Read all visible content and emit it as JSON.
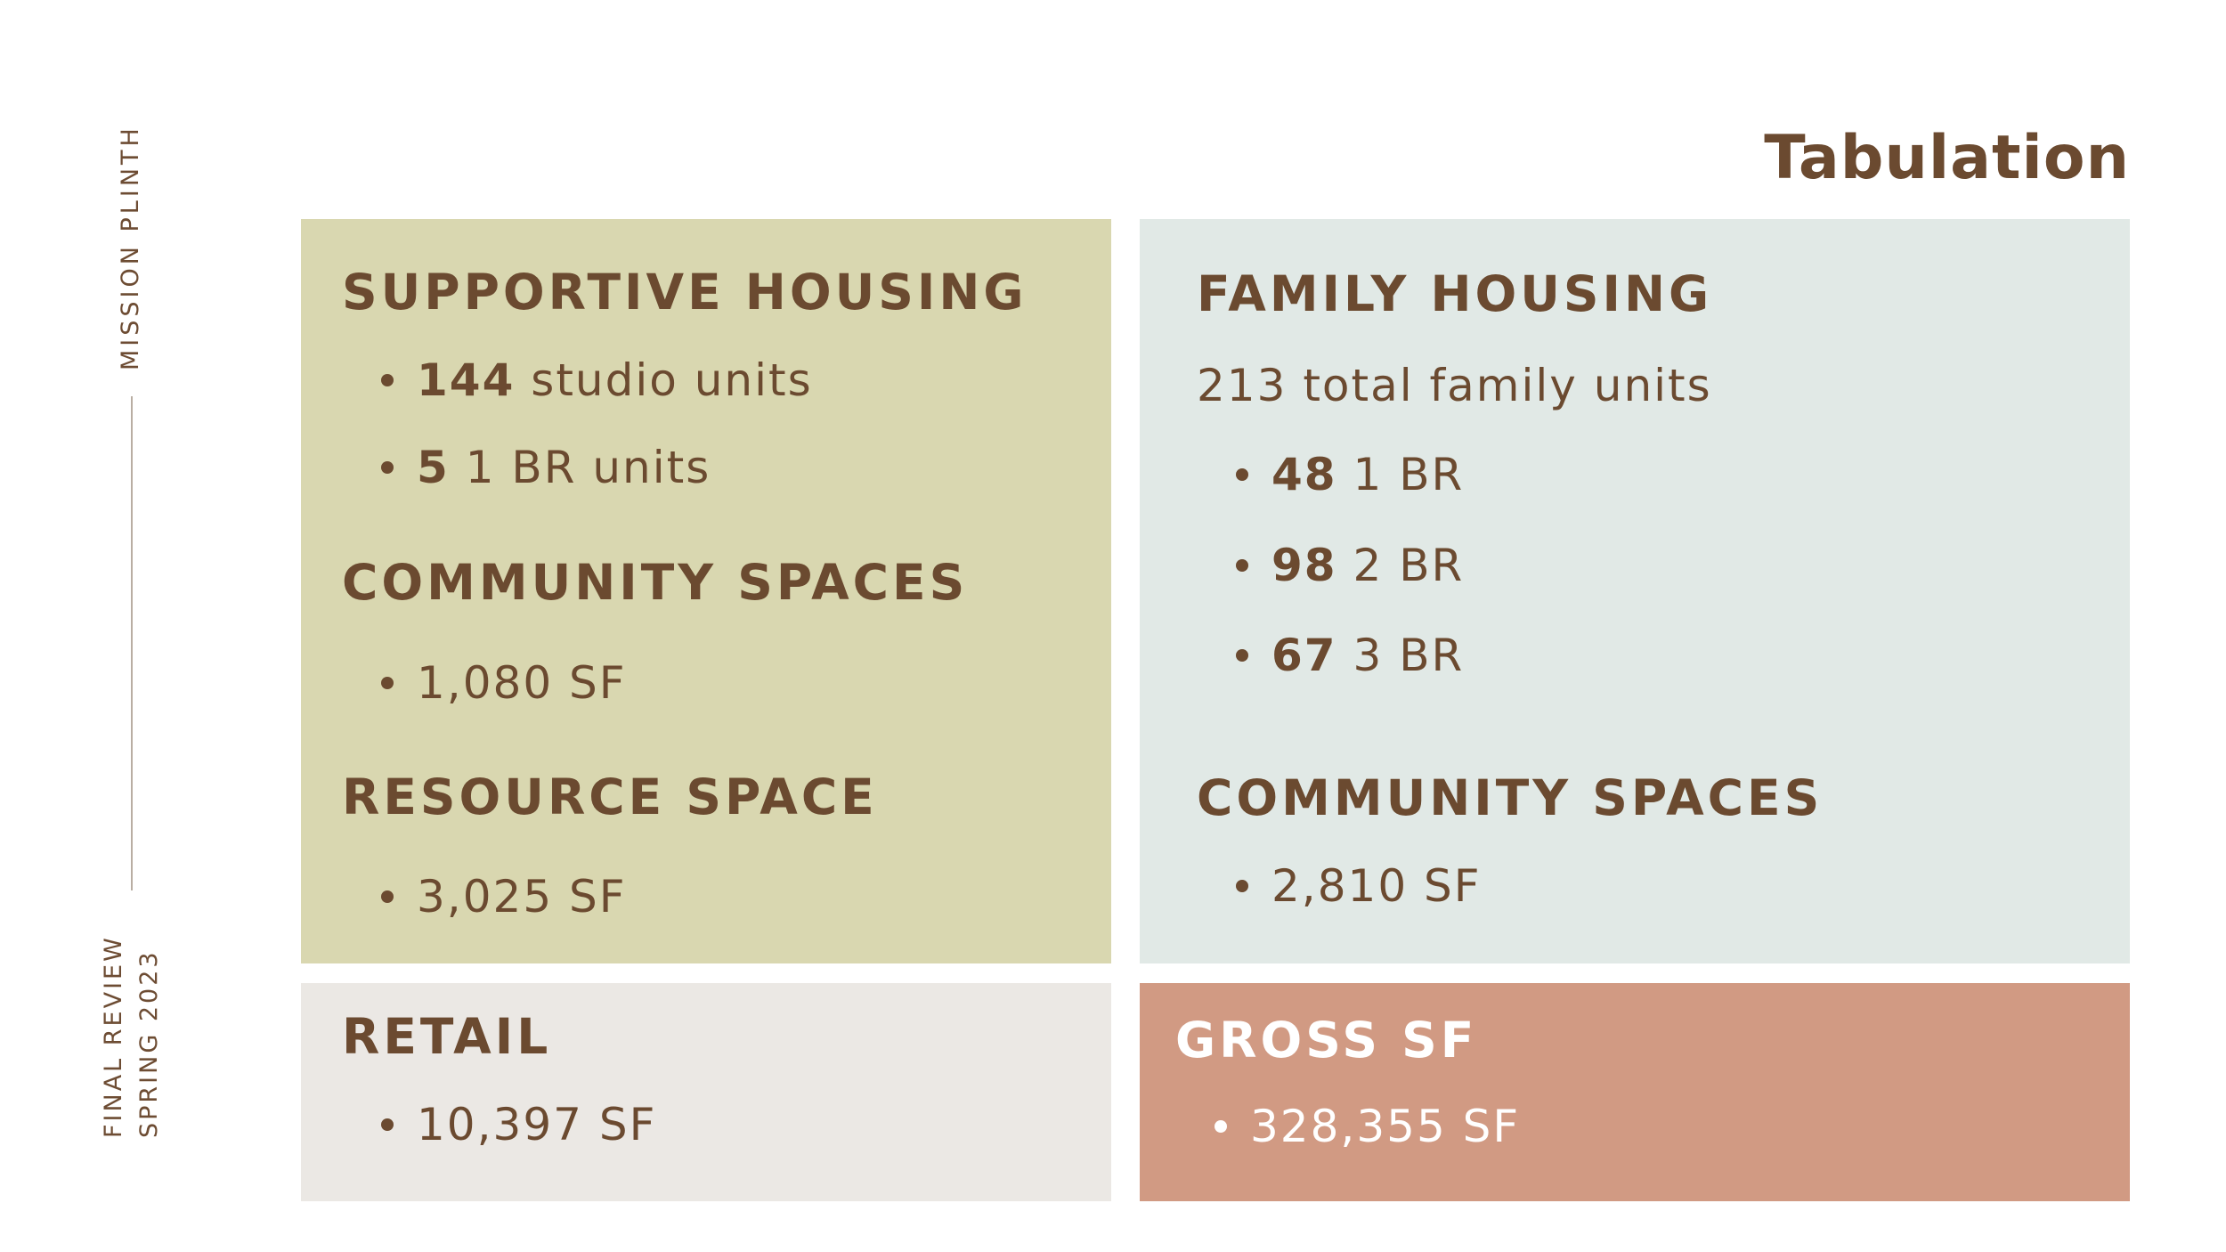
{
  "page": {
    "title": "Tabulation",
    "side_top": "MISSION PLINTH",
    "side_bottom_line1": "FINAL REVIEW",
    "side_bottom_line2": "SPRING 2023"
  },
  "supportive": {
    "heading": "SUPPORTIVE HOUSING",
    "items": [
      {
        "num": "144",
        "text": " studio units"
      },
      {
        "num": "5",
        "text": " 1 BR units"
      }
    ],
    "community_heading": "COMMUNITY SPACES",
    "community_item": "1,080 SF",
    "resource_heading": "RESOURCE SPACE",
    "resource_item": "3,025 SF"
  },
  "family": {
    "heading": "FAMILY HOUSING",
    "total": "213 total family units",
    "items": [
      {
        "num": "48",
        "text": " 1 BR"
      },
      {
        "num": "98",
        "text": " 2 BR"
      },
      {
        "num": "67",
        "text": " 3 BR"
      }
    ],
    "community_heading": "COMMUNITY SPACES",
    "community_item": "2,810 SF"
  },
  "retail": {
    "heading": "RETAIL",
    "item": "10,397 SF"
  },
  "gross": {
    "heading": "GROSS SF",
    "item": "328,355 SF"
  },
  "colors": {
    "text_brown": "#6b4a30",
    "supportive_bg": "#d9d7b0",
    "family_bg": "#e1e9e6",
    "retail_bg": "#ebe8e4",
    "gross_bg": "#d19a83"
  }
}
